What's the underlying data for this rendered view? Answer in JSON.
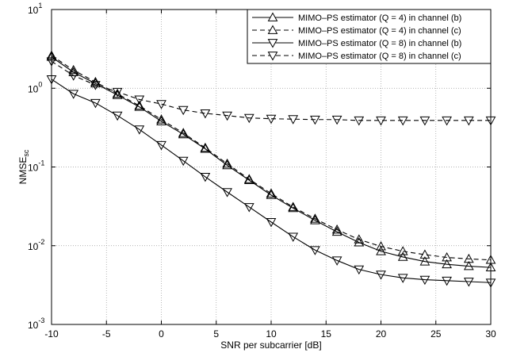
{
  "chart_data": {
    "type": "line",
    "xlabel": "SNR per subcarrier [dB]",
    "ylabel": "NMSE_sc",
    "x": [
      -10,
      -8,
      -6,
      -4,
      -2,
      0,
      2,
      4,
      6,
      8,
      10,
      12,
      14,
      16,
      18,
      20,
      22,
      24,
      26,
      28,
      30
    ],
    "xlim": [
      -10,
      30
    ],
    "xticks": [
      -10,
      -5,
      0,
      5,
      10,
      15,
      20,
      25,
      30
    ],
    "ylim": [
      0.001,
      10
    ],
    "log_y": true,
    "grid": true,
    "legend": "upper right",
    "yticks": [
      {
        "value": 0.001,
        "label": "10^-3"
      },
      {
        "value": 0.01,
        "label": "10^-2"
      },
      {
        "value": 0.1,
        "label": "10^-1"
      },
      {
        "value": 1,
        "label": "10^0"
      },
      {
        "value": 10,
        "label": "10^1"
      }
    ],
    "series": [
      {
        "name": "MIMO–PS estimator (Q = 4) in channel (b)",
        "color": "#000000",
        "dashed": false,
        "marker": "up",
        "values": [
          2.5,
          1.6,
          1.15,
          0.82,
          0.58,
          0.38,
          0.26,
          0.17,
          0.105,
          0.068,
          0.044,
          0.03,
          0.021,
          0.015,
          0.011,
          0.0085,
          0.0072,
          0.0063,
          0.0058,
          0.0055,
          0.0053
        ]
      },
      {
        "name": "MIMO–PS estimator (Q = 4) in channel (c)",
        "color": "#000000",
        "dashed": true,
        "marker": "up",
        "values": [
          2.6,
          1.7,
          1.2,
          0.85,
          0.6,
          0.4,
          0.27,
          0.175,
          0.11,
          0.07,
          0.046,
          0.031,
          0.022,
          0.016,
          0.012,
          0.0098,
          0.0085,
          0.0077,
          0.0071,
          0.0068,
          0.0066
        ]
      },
      {
        "name": "MIMO–PS estimator (Q = 8) in channel (b)",
        "color": "#000000",
        "dashed": false,
        "marker": "down",
        "values": [
          1.3,
          0.85,
          0.65,
          0.45,
          0.3,
          0.19,
          0.12,
          0.075,
          0.048,
          0.031,
          0.02,
          0.013,
          0.0088,
          0.0065,
          0.005,
          0.0043,
          0.0039,
          0.0037,
          0.0036,
          0.0035,
          0.0034
        ]
      },
      {
        "name": "MIMO–PS estimator (Q = 8) in channel (c)",
        "color": "#000000",
        "dashed": true,
        "marker": "down",
        "values": [
          2.2,
          1.45,
          1.1,
          0.9,
          0.72,
          0.63,
          0.53,
          0.48,
          0.45,
          0.42,
          0.41,
          0.405,
          0.4,
          0.4,
          0.39,
          0.39,
          0.39,
          0.39,
          0.39,
          0.39,
          0.39
        ]
      }
    ]
  }
}
